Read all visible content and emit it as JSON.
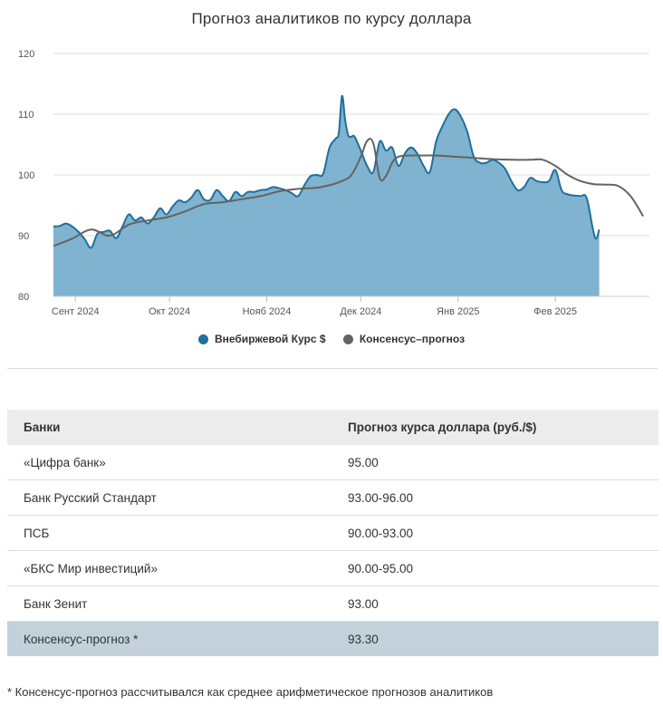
{
  "title": "Прогноз аналитиков по курсу доллара",
  "colors": {
    "market": "#1f6f9c",
    "market_fill": "#7fb3cf",
    "consensus": "#636363",
    "grid": "#dddddd",
    "highlight_row": "#c2d1da"
  },
  "chart_data": {
    "type": "area",
    "title": "Прогноз аналитиков по курсу доллара",
    "ylim": [
      80,
      120
    ],
    "yticks": [
      80,
      90,
      100,
      110,
      120
    ],
    "x_tick_labels": [
      "Сент 2024",
      "Окт 2024",
      "Нояб 2024",
      "Дек 2024",
      "Янв 2025",
      "Фев 2025"
    ],
    "x_ticks": [
      "2024-09-01",
      "2024-10-01",
      "2024-11-01",
      "2024-12-01",
      "2025-01-01",
      "2025-02-01"
    ],
    "xlim": [
      "2024-08-25",
      "2025-03-03"
    ],
    "grid": true,
    "legend_position": "bottom",
    "series": [
      {
        "name": "Внебиржевой Курс $",
        "type": "area",
        "x": [
          "2024-08-25",
          "2024-08-27",
          "2024-08-29",
          "2024-08-31",
          "2024-09-02",
          "2024-09-04",
          "2024-09-06",
          "2024-09-08",
          "2024-09-10",
          "2024-09-12",
          "2024-09-14",
          "2024-09-16",
          "2024-09-18",
          "2024-09-20",
          "2024-09-22",
          "2024-09-24",
          "2024-09-26",
          "2024-09-28",
          "2024-09-30",
          "2024-10-02",
          "2024-10-04",
          "2024-10-06",
          "2024-10-08",
          "2024-10-10",
          "2024-10-12",
          "2024-10-14",
          "2024-10-16",
          "2024-10-18",
          "2024-10-20",
          "2024-10-22",
          "2024-10-24",
          "2024-10-26",
          "2024-10-28",
          "2024-10-30",
          "2024-11-01",
          "2024-11-03",
          "2024-11-05",
          "2024-11-07",
          "2024-11-09",
          "2024-11-11",
          "2024-11-13",
          "2024-11-15",
          "2024-11-17",
          "2024-11-19",
          "2024-11-21",
          "2024-11-23",
          "2024-11-24",
          "2024-11-25",
          "2024-11-26",
          "2024-11-27",
          "2024-11-28",
          "2024-11-29",
          "2024-12-01",
          "2024-12-03",
          "2024-12-05",
          "2024-12-07",
          "2024-12-09",
          "2024-12-11",
          "2024-12-13",
          "2024-12-15",
          "2024-12-17",
          "2024-12-19",
          "2024-12-21",
          "2024-12-23",
          "2024-12-25",
          "2024-12-27",
          "2024-12-29",
          "2024-12-31",
          "2025-01-02",
          "2025-01-04",
          "2025-01-06",
          "2025-01-08",
          "2025-01-10",
          "2025-01-12",
          "2025-01-14",
          "2025-01-16",
          "2025-01-18",
          "2025-01-20",
          "2025-01-22",
          "2025-01-24",
          "2025-01-26",
          "2025-01-28",
          "2025-01-30",
          "2025-02-01",
          "2025-02-03",
          "2025-02-05",
          "2025-02-07",
          "2025-02-09",
          "2025-02-11",
          "2025-02-13",
          "2025-02-14",
          "2025-02-15"
        ],
        "y": [
          91.5,
          91.6,
          92.0,
          91.5,
          90.6,
          89.4,
          88.0,
          90.3,
          90.6,
          90.8,
          89.6,
          91.5,
          93.5,
          92.5,
          93.0,
          92.0,
          93.0,
          94.5,
          93.5,
          94.8,
          95.8,
          95.5,
          96.3,
          97.5,
          96.0,
          95.9,
          97.5,
          96.5,
          95.7,
          97.2,
          96.5,
          97.2,
          97.2,
          97.5,
          97.6,
          98.0,
          97.8,
          97.5,
          97.0,
          96.5,
          98.3,
          99.8,
          100.0,
          100.2,
          104.5,
          106.0,
          107.0,
          113.0,
          109.0,
          106.5,
          106.3,
          106.3,
          104.0,
          101.5,
          100.5,
          105.5,
          104.0,
          104.5,
          101.5,
          103.5,
          104.5,
          103.5,
          101.5,
          100.5,
          105.5,
          108.0,
          110.0,
          110.8,
          109.5,
          107.0,
          103.0,
          102.0,
          102.0,
          102.5,
          102.0,
          101.0,
          99.0,
          97.5,
          98.0,
          99.5,
          99.0,
          98.8,
          99.0,
          100.8,
          97.5,
          96.8,
          96.6,
          96.5,
          96.2,
          91.0,
          89.5,
          91.0
        ]
      },
      {
        "name": "Консенсус–прогноз",
        "type": "line",
        "x": [
          "2024-08-25",
          "2024-08-31",
          "2024-09-06",
          "2024-09-12",
          "2024-09-18",
          "2024-09-24",
          "2024-09-30",
          "2024-10-06",
          "2024-10-12",
          "2024-10-18",
          "2024-10-24",
          "2024-10-30",
          "2024-11-05",
          "2024-11-11",
          "2024-11-17",
          "2024-11-21",
          "2024-11-25",
          "2024-11-28",
          "2024-12-01",
          "2024-12-03",
          "2024-12-05",
          "2024-12-07",
          "2024-12-09",
          "2024-12-11",
          "2024-12-13",
          "2024-12-17",
          "2024-12-21",
          "2024-12-25",
          "2024-12-31",
          "2025-01-06",
          "2025-01-12",
          "2025-01-18",
          "2025-01-24",
          "2025-01-28",
          "2025-02-01",
          "2025-02-05",
          "2025-02-09",
          "2025-02-13",
          "2025-02-17",
          "2025-02-21",
          "2025-02-25",
          "2025-03-01"
        ],
        "y": [
          88.3,
          89.5,
          91.0,
          90.0,
          91.8,
          92.5,
          93.0,
          94.0,
          95.2,
          95.5,
          96.0,
          96.5,
          97.3,
          97.7,
          97.9,
          98.3,
          99.0,
          100.0,
          103.0,
          105.6,
          105.2,
          99.5,
          99.8,
          102.0,
          103.0,
          103.2,
          103.2,
          103.2,
          103.0,
          102.8,
          102.6,
          102.5,
          102.5,
          102.5,
          101.5,
          100.0,
          99.0,
          98.5,
          98.4,
          98.2,
          96.5,
          93.2
        ]
      }
    ]
  },
  "legend": [
    {
      "label": "Внебиржевой Курс $",
      "color": "#1f6f9c"
    },
    {
      "label": "Консенсус–прогноз",
      "color": "#636363"
    }
  ],
  "table": {
    "headers": [
      "Банки",
      "Прогноз курса доллара (руб./$)"
    ],
    "rows": [
      {
        "bank": "«Цифра банк»",
        "forecast": "95.00"
      },
      {
        "bank": "Банк Русский Стандарт",
        "forecast": "93.00-96.00"
      },
      {
        "bank": "ПСБ",
        "forecast": "90.00-93.00"
      },
      {
        "bank": "«БКС Мир инвестиций»",
        "forecast": "90.00-95.00"
      },
      {
        "bank": "Банк Зенит",
        "forecast": "93.00"
      }
    ],
    "consensus_row": {
      "bank": "Консенсус-прогноз *",
      "forecast": "93.30"
    }
  },
  "footnote": "* Консенсус-прогноз рассчитывался как среднее арифметическое прогнозов аналитиков"
}
